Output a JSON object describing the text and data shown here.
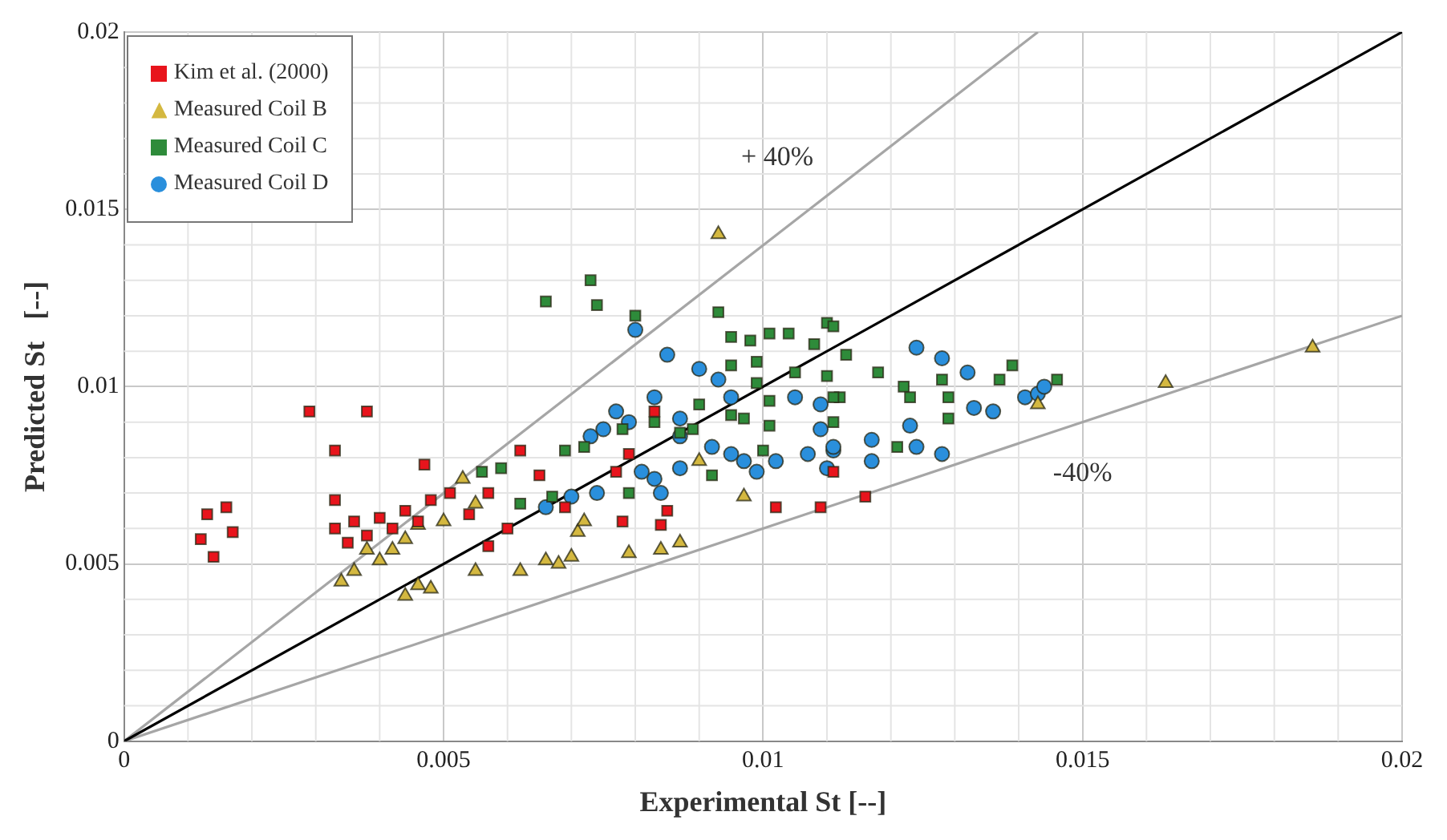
{
  "chart_data": {
    "type": "scatter",
    "xlabel": "Experimental St [--]",
    "ylabel": "Predicted St   [--]",
    "xlim": [
      0,
      0.02
    ],
    "ylim": [
      0,
      0.02
    ],
    "xticks": [
      0,
      0.005,
      0.01,
      0.015,
      0.02
    ],
    "yticks": [
      0,
      0.005,
      0.01,
      0.015,
      0.02
    ],
    "grid": true,
    "legend": "top left",
    "annotations": [
      "+ 40%",
      "-40%"
    ],
    "series": [
      {
        "name": "Kim et al. (2000)",
        "color": "#e8141c",
        "marker": "square",
        "x": [
          0.0013,
          0.0017,
          0.0012,
          0.0014,
          0.0016,
          0.0029,
          0.0038,
          0.0033,
          0.0033,
          0.0033,
          0.0035,
          0.0036,
          0.0038,
          0.004,
          0.0042,
          0.0044,
          0.0046,
          0.0047,
          0.0048,
          0.0051,
          0.0054,
          0.0057,
          0.0057,
          0.006,
          0.0062,
          0.0065,
          0.0069,
          0.0077,
          0.0078,
          0.0079,
          0.0083,
          0.0084,
          0.0085,
          0.0102,
          0.0109,
          0.0111,
          0.0116
        ],
        "values": [
          0.0064,
          0.0059,
          0.0057,
          0.0052,
          0.0066,
          0.0093,
          0.0093,
          0.0082,
          0.0068,
          0.006,
          0.0056,
          0.0062,
          0.0058,
          0.0063,
          0.006,
          0.0065,
          0.0062,
          0.0078,
          0.0068,
          0.007,
          0.0064,
          0.0055,
          0.007,
          0.006,
          0.0082,
          0.0075,
          0.0066,
          0.0076,
          0.0062,
          0.0081,
          0.0093,
          0.0061,
          0.0065,
          0.0066,
          0.0066,
          0.0076,
          0.0069
        ]
      },
      {
        "name": "Measured Coil B",
        "color": "#d4b840",
        "marker": "triangle",
        "x": [
          0.0034,
          0.0036,
          0.0038,
          0.004,
          0.0042,
          0.0044,
          0.0046,
          0.005,
          0.0053,
          0.0055,
          0.0044,
          0.0046,
          0.0048,
          0.0055,
          0.0062,
          0.0066,
          0.0068,
          0.007,
          0.0079,
          0.0084,
          0.0087,
          0.0071,
          0.0072,
          0.009,
          0.0097,
          0.0093,
          0.0143,
          0.0163,
          0.0186
        ],
        "values": [
          0.0045,
          0.0048,
          0.0054,
          0.0051,
          0.0054,
          0.0057,
          0.0061,
          0.0062,
          0.0074,
          0.0067,
          0.0041,
          0.0044,
          0.0043,
          0.0048,
          0.0048,
          0.0051,
          0.005,
          0.0052,
          0.0053,
          0.0054,
          0.0056,
          0.0059,
          0.0062,
          0.0079,
          0.0069,
          0.0143,
          0.0095,
          0.0101,
          0.0111
        ]
      },
      {
        "name": "Measured Coil C",
        "color": "#2e8b3a",
        "marker": "square",
        "x": [
          0.0066,
          0.0073,
          0.0074,
          0.008,
          0.0093,
          0.0095,
          0.0098,
          0.0101,
          0.0104,
          0.011,
          0.0108,
          0.0113,
          0.0095,
          0.0099,
          0.0105,
          0.011,
          0.0099,
          0.0101,
          0.0112,
          0.0095,
          0.0097,
          0.0101,
          0.009,
          0.0083,
          0.0087,
          0.0089,
          0.0078,
          0.01,
          0.0092,
          0.0079,
          0.0069,
          0.0072,
          0.0056,
          0.0059,
          0.0062,
          0.0067,
          0.0111,
          0.0118,
          0.0122,
          0.0123,
          0.0128,
          0.0129,
          0.0129,
          0.0137,
          0.0139,
          0.0146,
          0.0121,
          0.0111,
          0.0111
        ],
        "values": [
          0.0124,
          0.013,
          0.0123,
          0.012,
          0.0121,
          0.0114,
          0.0113,
          0.0115,
          0.0115,
          0.0118,
          0.0112,
          0.0109,
          0.0106,
          0.0107,
          0.0104,
          0.0103,
          0.0101,
          0.0096,
          0.0097,
          0.0092,
          0.0091,
          0.0089,
          0.0095,
          0.009,
          0.0087,
          0.0088,
          0.0088,
          0.0082,
          0.0075,
          0.007,
          0.0082,
          0.0083,
          0.0076,
          0.0077,
          0.0067,
          0.0069,
          0.0117,
          0.0104,
          0.01,
          0.0097,
          0.0102,
          0.0097,
          0.0091,
          0.0102,
          0.0106,
          0.0102,
          0.0083,
          0.0097,
          0.009
        ]
      },
      {
        "name": "Measured Coil D",
        "color": "#2a8fdc",
        "marker": "circle",
        "x": [
          0.008,
          0.0085,
          0.009,
          0.0093,
          0.0095,
          0.0077,
          0.0079,
          0.0075,
          0.0073,
          0.0087,
          0.0087,
          0.0092,
          0.0095,
          0.0097,
          0.0099,
          0.0102,
          0.0087,
          0.0083,
          0.0081,
          0.0084,
          0.0074,
          0.007,
          0.0066,
          0.0107,
          0.011,
          0.0111,
          0.0109,
          0.0105,
          0.0109,
          0.0083,
          0.0124,
          0.0128,
          0.0132,
          0.0136,
          0.0133,
          0.0141,
          0.0143,
          0.0144,
          0.0117,
          0.0123,
          0.0124,
          0.0128,
          0.0117,
          0.0111
        ],
        "values": [
          0.0116,
          0.0109,
          0.0105,
          0.0102,
          0.0097,
          0.0093,
          0.009,
          0.0088,
          0.0086,
          0.0091,
          0.0086,
          0.0083,
          0.0081,
          0.0079,
          0.0076,
          0.0079,
          0.0077,
          0.0074,
          0.0076,
          0.007,
          0.007,
          0.0069,
          0.0066,
          0.0081,
          0.0077,
          0.0082,
          0.0088,
          0.0097,
          0.0095,
          0.0097,
          0.0111,
          0.0108,
          0.0104,
          0.0093,
          0.0094,
          0.0097,
          0.0098,
          0.01,
          0.0085,
          0.0089,
          0.0083,
          0.0081,
          0.0079,
          0.0083
        ]
      },
      {
        "type": "line",
        "color": "#000000",
        "marker": "none",
        "x": [
          0,
          0.02
        ],
        "values": [
          0,
          0.02
        ]
      },
      {
        "type": "line",
        "color": "#a6a6a6",
        "marker": "none",
        "x": [
          0,
          0.0143
        ],
        "values": [
          0,
          0.02
        ]
      },
      {
        "type": "line",
        "color": "#a6a6a6",
        "marker": "none",
        "x": [
          0,
          0.02
        ],
        "values": [
          0,
          0.012
        ]
      }
    ]
  }
}
